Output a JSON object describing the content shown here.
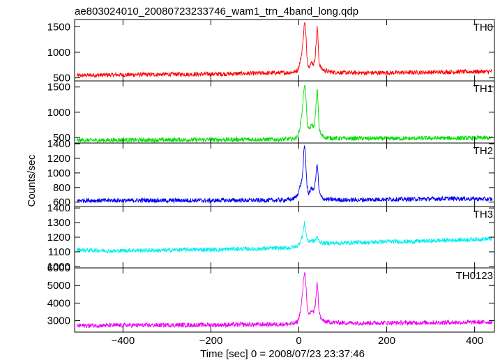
{
  "chart_data": {
    "type": "line",
    "title": "ae803024010_20080723233746_wam1_trn_4band_long.qdp",
    "xlabel": "Time [sec] 0 = 2008/07/23 23:37:46",
    "ylabel": "Counts/sec",
    "xlim": [
      -510,
      445
    ],
    "x_ticks": [
      -400,
      -200,
      0,
      200,
      400
    ],
    "x_tick_labels": [
      "−400",
      "−200",
      "0",
      "200",
      "400"
    ],
    "panels": [
      {
        "label": "TH0",
        "color": "#ff0000",
        "ylim": [
          440,
          1640
        ],
        "y_ticks": [
          500,
          1000,
          1500
        ],
        "y_tick_labels": [
          "500",
          "1000",
          "1500"
        ],
        "series": {
          "x": [
            -505,
            -480,
            -450,
            -420,
            -390,
            -360,
            -330,
            -300,
            -270,
            -240,
            -210,
            -180,
            -150,
            -120,
            -90,
            -60,
            -30,
            -15,
            -8,
            -3,
            0,
            3,
            6,
            9,
            11,
            13,
            15,
            17,
            19,
            22,
            26,
            30,
            34,
            37,
            40,
            42,
            44,
            46,
            50,
            55,
            60,
            70,
            80,
            100,
            130,
            160,
            200,
            250,
            300,
            350,
            400,
            440
          ],
          "y": [
            545,
            550,
            555,
            560,
            560,
            565,
            565,
            570,
            570,
            570,
            575,
            575,
            580,
            585,
            590,
            595,
            600,
            610,
            620,
            650,
            720,
            820,
            950,
            1150,
            1400,
            1600,
            1500,
            1200,
            850,
            720,
            760,
            800,
            760,
            900,
            1250,
            1520,
            1200,
            800,
            700,
            660,
            640,
            620,
            610,
            600,
            600,
            600,
            600,
            605,
            610,
            615,
            620,
            625
          ]
        }
      },
      {
        "label": "TH1",
        "color": "#00dd00",
        "ylim": [
          390,
          1620
        ],
        "y_ticks": [
          500,
          1000,
          1500
        ],
        "y_tick_labels": [
          "500",
          "1000",
          "1500"
        ],
        "series": {
          "x": [
            -505,
            -480,
            -450,
            -420,
            -390,
            -360,
            -330,
            -300,
            -270,
            -240,
            -210,
            -180,
            -150,
            -120,
            -90,
            -60,
            -30,
            -15,
            -8,
            -3,
            0,
            3,
            6,
            9,
            11,
            13,
            15,
            17,
            19,
            22,
            26,
            30,
            34,
            37,
            40,
            42,
            44,
            46,
            50,
            55,
            60,
            70,
            80,
            100,
            130,
            160,
            200,
            250,
            300,
            350,
            400,
            440
          ],
          "y": [
            445,
            445,
            445,
            450,
            450,
            450,
            450,
            450,
            455,
            455,
            455,
            455,
            460,
            460,
            460,
            460,
            465,
            470,
            480,
            520,
            600,
            720,
            900,
            1150,
            1400,
            1580,
            1450,
            1150,
            800,
            650,
            700,
            760,
            700,
            850,
            1250,
            1480,
            1150,
            700,
            560,
            520,
            500,
            490,
            485,
            480,
            480,
            480,
            480,
            480,
            485,
            485,
            490,
            490
          ]
        }
      },
      {
        "label": "TH2",
        "color": "#0000ee",
        "ylim": [
          540,
          1410
        ],
        "y_ticks": [
          600,
          800,
          1000,
          1200,
          1400
        ],
        "y_tick_labels": [
          "600",
          "800",
          "1000",
          "1200",
          "1400"
        ],
        "series": {
          "x": [
            -505,
            -480,
            -450,
            -420,
            -390,
            -360,
            -330,
            -300,
            -270,
            -240,
            -210,
            -180,
            -150,
            -120,
            -90,
            -60,
            -30,
            -15,
            -8,
            -3,
            0,
            3,
            6,
            9,
            11,
            13,
            15,
            17,
            19,
            22,
            26,
            30,
            34,
            37,
            40,
            42,
            44,
            46,
            50,
            55,
            60,
            70,
            80,
            100,
            130,
            160,
            200,
            250,
            300,
            350,
            400,
            440
          ],
          "y": [
            620,
            625,
            620,
            625,
            620,
            625,
            625,
            620,
            625,
            625,
            620,
            625,
            625,
            625,
            625,
            625,
            630,
            640,
            660,
            700,
            760,
            820,
            880,
            1000,
            1250,
            1380,
            1260,
            1000,
            800,
            720,
            760,
            800,
            760,
            850,
            1050,
            1120,
            950,
            760,
            680,
            650,
            640,
            635,
            635,
            630,
            630,
            635,
            640,
            640,
            645,
            650,
            645,
            640
          ]
        }
      },
      {
        "label": "TH3",
        "color": "#00eeee",
        "ylim": [
          990,
          1410
        ],
        "y_ticks": [
          1000,
          1100,
          1200,
          1300,
          1400
        ],
        "y_tick_labels": [
          "1000",
          "1100",
          "1200",
          "1300",
          "1400"
        ],
        "series": {
          "x": [
            -505,
            -480,
            -450,
            -420,
            -390,
            -360,
            -330,
            -300,
            -270,
            -240,
            -210,
            -180,
            -150,
            -120,
            -90,
            -60,
            -30,
            -15,
            -8,
            -3,
            0,
            3,
            6,
            9,
            11,
            13,
            15,
            17,
            19,
            22,
            26,
            30,
            34,
            37,
            40,
            42,
            44,
            46,
            50,
            55,
            60,
            70,
            80,
            100,
            130,
            160,
            200,
            250,
            300,
            350,
            400,
            440
          ],
          "y": [
            1115,
            1110,
            1110,
            1105,
            1110,
            1110,
            1110,
            1110,
            1115,
            1115,
            1115,
            1115,
            1120,
            1120,
            1120,
            1125,
            1125,
            1130,
            1135,
            1140,
            1150,
            1170,
            1190,
            1220,
            1260,
            1300,
            1260,
            1220,
            1190,
            1170,
            1175,
            1180,
            1170,
            1180,
            1190,
            1200,
            1190,
            1175,
            1165,
            1160,
            1160,
            1160,
            1160,
            1160,
            1165,
            1165,
            1170,
            1170,
            1175,
            1180,
            1185,
            1190
          ]
        }
      },
      {
        "label": "TH0123",
        "color": "#ee00ee",
        "ylim": [
          2350,
          6000
        ],
        "y_ticks": [
          3000,
          4000,
          5000,
          6000
        ],
        "y_tick_labels": [
          "3000",
          "4000",
          "5000",
          "6000"
        ],
        "series": {
          "x": [
            -505,
            -480,
            -450,
            -420,
            -390,
            -360,
            -330,
            -300,
            -270,
            -240,
            -210,
            -180,
            -150,
            -120,
            -90,
            -60,
            -30,
            -15,
            -8,
            -3,
            0,
            3,
            6,
            9,
            11,
            13,
            15,
            17,
            19,
            22,
            26,
            30,
            34,
            37,
            40,
            42,
            44,
            46,
            50,
            55,
            60,
            70,
            80,
            100,
            130,
            160,
            200,
            250,
            300,
            350,
            400,
            440
          ],
          "y": [
            2720,
            2720,
            2730,
            2730,
            2740,
            2740,
            2740,
            2750,
            2750,
            2750,
            2760,
            2760,
            2770,
            2770,
            2780,
            2790,
            2800,
            2820,
            2860,
            2950,
            3150,
            3500,
            4000,
            4700,
            5400,
            5800,
            5500,
            4700,
            3700,
            3300,
            3450,
            3600,
            3450,
            3800,
            4700,
            5200,
            4400,
            3500,
            3150,
            3000,
            2950,
            2920,
            2900,
            2880,
            2870,
            2870,
            2880,
            2880,
            2890,
            2900,
            2910,
            2920
          ]
        }
      }
    ]
  }
}
